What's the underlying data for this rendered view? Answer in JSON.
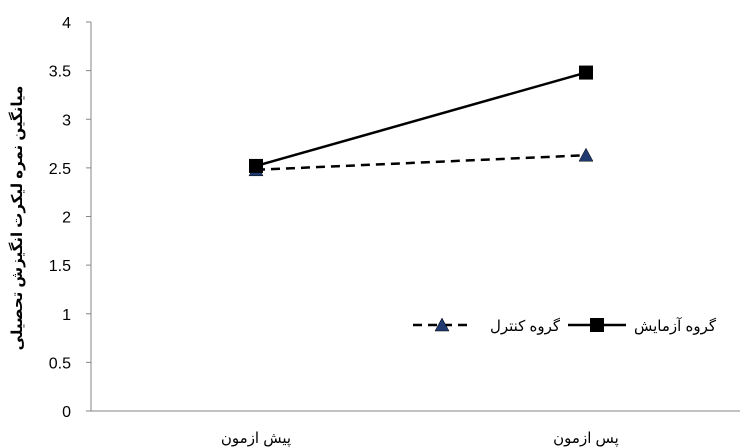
{
  "chart_data": {
    "type": "line",
    "title": "",
    "xlabel": "",
    "ylabel": "میانگین نمره لیکرت انگیزش تحصیلی",
    "categories": [
      "پیش ازمون",
      "پس ازمون"
    ],
    "ylim": [
      0,
      4
    ],
    "yticks": [
      "0",
      "0.5",
      "1",
      "1.5",
      "2",
      "2.5",
      "3",
      "3.5",
      "4"
    ],
    "grid": false,
    "legend_position": "right",
    "series": [
      {
        "name": "گروه آزمایش",
        "values": [
          2.52,
          3.48
        ],
        "line_style": "solid",
        "marker": "square",
        "line_color": "#000000",
        "marker_color": "#000000"
      },
      {
        "name": "گروه کنترل",
        "values": [
          2.48,
          2.63
        ],
        "line_style": "dashed",
        "marker": "triangle",
        "line_color": "#000000",
        "marker_color": "#1f3a6e"
      }
    ]
  }
}
